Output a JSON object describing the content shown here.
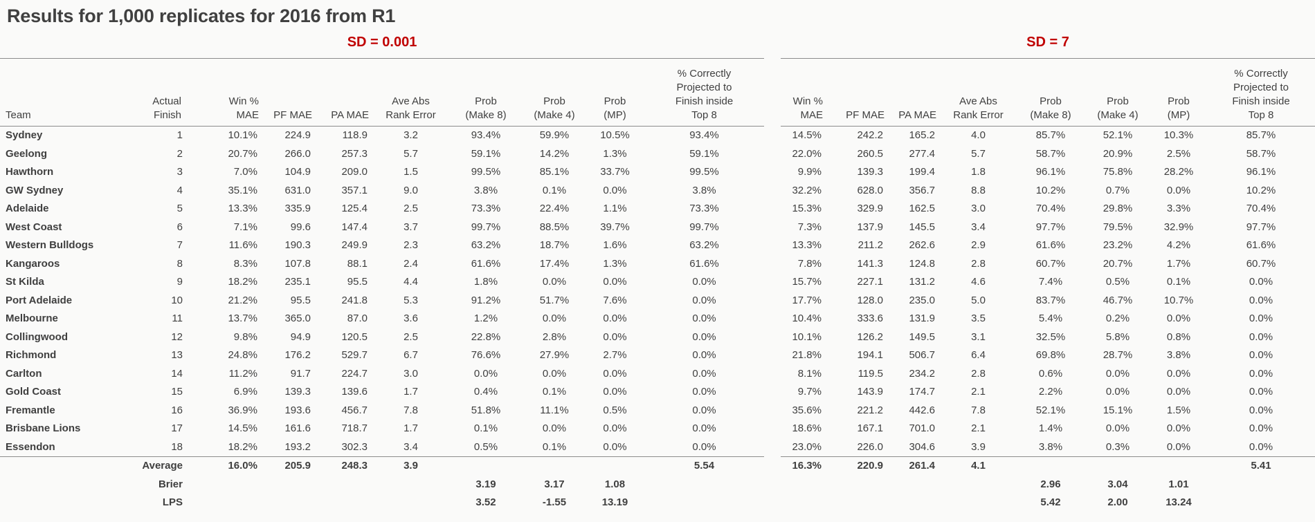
{
  "title": "Results for 1,000 replicates for 2016 from R1",
  "accent_color": "#c00000",
  "sections": [
    {
      "label": "SD = 0.001"
    },
    {
      "label": "SD = 7"
    }
  ],
  "headers": {
    "team": "Team",
    "finish": "Actual\nFinish",
    "win_mae": "Win %\nMAE",
    "pf_mae": "PF MAE",
    "pa_mae": "PA MAE",
    "rank_error": "Ave Abs\nRank Error",
    "prob_make8": "Prob\n(Make 8)",
    "prob_make4": "Prob\n(Make 4)",
    "prob_mp": "Prob\n(MP)",
    "top8": "% Correctly\nProjected to\nFinish inside\nTop 8"
  },
  "rows": [
    {
      "team": "Sydney",
      "finish": "1",
      "sd_001": [
        "10.1%",
        "224.9",
        "118.9",
        "3.2",
        "93.4%",
        "59.9%",
        "10.5%",
        "93.4%"
      ],
      "sd_7": [
        "14.5%",
        "242.2",
        "165.2",
        "4.0",
        "85.7%",
        "52.1%",
        "10.3%",
        "85.7%"
      ]
    },
    {
      "team": "Geelong",
      "finish": "2",
      "sd_001": [
        "20.7%",
        "266.0",
        "257.3",
        "5.7",
        "59.1%",
        "14.2%",
        "1.3%",
        "59.1%"
      ],
      "sd_7": [
        "22.0%",
        "260.5",
        "277.4",
        "5.7",
        "58.7%",
        "20.9%",
        "2.5%",
        "58.7%"
      ]
    },
    {
      "team": "Hawthorn",
      "finish": "3",
      "sd_001": [
        "7.0%",
        "104.9",
        "209.0",
        "1.5",
        "99.5%",
        "85.1%",
        "33.7%",
        "99.5%"
      ],
      "sd_7": [
        "9.9%",
        "139.3",
        "199.4",
        "1.8",
        "96.1%",
        "75.8%",
        "28.2%",
        "96.1%"
      ]
    },
    {
      "team": "GW Sydney",
      "finish": "4",
      "sd_001": [
        "35.1%",
        "631.0",
        "357.1",
        "9.0",
        "3.8%",
        "0.1%",
        "0.0%",
        "3.8%"
      ],
      "sd_7": [
        "32.2%",
        "628.0",
        "356.7",
        "8.8",
        "10.2%",
        "0.7%",
        "0.0%",
        "10.2%"
      ]
    },
    {
      "team": "Adelaide",
      "finish": "5",
      "sd_001": [
        "13.3%",
        "335.9",
        "125.4",
        "2.5",
        "73.3%",
        "22.4%",
        "1.1%",
        "73.3%"
      ],
      "sd_7": [
        "15.3%",
        "329.9",
        "162.5",
        "3.0",
        "70.4%",
        "29.8%",
        "3.3%",
        "70.4%"
      ]
    },
    {
      "team": "West Coast",
      "finish": "6",
      "sd_001": [
        "7.1%",
        "99.6",
        "147.4",
        "3.7",
        "99.7%",
        "88.5%",
        "39.7%",
        "99.7%"
      ],
      "sd_7": [
        "7.3%",
        "137.9",
        "145.5",
        "3.4",
        "97.7%",
        "79.5%",
        "32.9%",
        "97.7%"
      ]
    },
    {
      "team": "Western Bulldogs",
      "finish": "7",
      "sd_001": [
        "11.6%",
        "190.3",
        "249.9",
        "2.3",
        "63.2%",
        "18.7%",
        "1.6%",
        "63.2%"
      ],
      "sd_7": [
        "13.3%",
        "211.2",
        "262.6",
        "2.9",
        "61.6%",
        "23.2%",
        "4.2%",
        "61.6%"
      ]
    },
    {
      "team": "Kangaroos",
      "finish": "8",
      "sd_001": [
        "8.3%",
        "107.8",
        "88.1",
        "2.4",
        "61.6%",
        "17.4%",
        "1.3%",
        "61.6%"
      ],
      "sd_7": [
        "7.8%",
        "141.3",
        "124.8",
        "2.8",
        "60.7%",
        "20.7%",
        "1.7%",
        "60.7%"
      ]
    },
    {
      "team": "St Kilda",
      "finish": "9",
      "sd_001": [
        "18.2%",
        "235.1",
        "95.5",
        "4.4",
        "1.8%",
        "0.0%",
        "0.0%",
        "0.0%"
      ],
      "sd_7": [
        "15.7%",
        "227.1",
        "131.2",
        "4.6",
        "7.4%",
        "0.5%",
        "0.1%",
        "0.0%"
      ]
    },
    {
      "team": "Port Adelaide",
      "finish": "10",
      "sd_001": [
        "21.2%",
        "95.5",
        "241.8",
        "5.3",
        "91.2%",
        "51.7%",
        "7.6%",
        "0.0%"
      ],
      "sd_7": [
        "17.7%",
        "128.0",
        "235.0",
        "5.0",
        "83.7%",
        "46.7%",
        "10.7%",
        "0.0%"
      ]
    },
    {
      "team": "Melbourne",
      "finish": "11",
      "sd_001": [
        "13.7%",
        "365.0",
        "87.0",
        "3.6",
        "1.2%",
        "0.0%",
        "0.0%",
        "0.0%"
      ],
      "sd_7": [
        "10.4%",
        "333.6",
        "131.9",
        "3.5",
        "5.4%",
        "0.2%",
        "0.0%",
        "0.0%"
      ]
    },
    {
      "team": "Collingwood",
      "finish": "12",
      "sd_001": [
        "9.8%",
        "94.9",
        "120.5",
        "2.5",
        "22.8%",
        "2.8%",
        "0.0%",
        "0.0%"
      ],
      "sd_7": [
        "10.1%",
        "126.2",
        "149.5",
        "3.1",
        "32.5%",
        "5.8%",
        "0.8%",
        "0.0%"
      ]
    },
    {
      "team": "Richmond",
      "finish": "13",
      "sd_001": [
        "24.8%",
        "176.2",
        "529.7",
        "6.7",
        "76.6%",
        "27.9%",
        "2.7%",
        "0.0%"
      ],
      "sd_7": [
        "21.8%",
        "194.1",
        "506.7",
        "6.4",
        "69.8%",
        "28.7%",
        "3.8%",
        "0.0%"
      ]
    },
    {
      "team": "Carlton",
      "finish": "14",
      "sd_001": [
        "11.2%",
        "91.7",
        "224.7",
        "3.0",
        "0.0%",
        "0.0%",
        "0.0%",
        "0.0%"
      ],
      "sd_7": [
        "8.1%",
        "119.5",
        "234.2",
        "2.8",
        "0.6%",
        "0.0%",
        "0.0%",
        "0.0%"
      ]
    },
    {
      "team": "Gold Coast",
      "finish": "15",
      "sd_001": [
        "6.9%",
        "139.3",
        "139.6",
        "1.7",
        "0.4%",
        "0.1%",
        "0.0%",
        "0.0%"
      ],
      "sd_7": [
        "9.7%",
        "143.9",
        "174.7",
        "2.1",
        "2.2%",
        "0.0%",
        "0.0%",
        "0.0%"
      ]
    },
    {
      "team": "Fremantle",
      "finish": "16",
      "sd_001": [
        "36.9%",
        "193.6",
        "456.7",
        "7.8",
        "51.8%",
        "11.1%",
        "0.5%",
        "0.0%"
      ],
      "sd_7": [
        "35.6%",
        "221.2",
        "442.6",
        "7.8",
        "52.1%",
        "15.1%",
        "1.5%",
        "0.0%"
      ]
    },
    {
      "team": "Brisbane Lions",
      "finish": "17",
      "sd_001": [
        "14.5%",
        "161.6",
        "718.7",
        "1.7",
        "0.1%",
        "0.0%",
        "0.0%",
        "0.0%"
      ],
      "sd_7": [
        "18.6%",
        "167.1",
        "701.0",
        "2.1",
        "1.4%",
        "0.0%",
        "0.0%",
        "0.0%"
      ]
    },
    {
      "team": "Essendon",
      "finish": "18",
      "sd_001": [
        "18.2%",
        "193.2",
        "302.3",
        "3.4",
        "0.5%",
        "0.1%",
        "0.0%",
        "0.0%"
      ],
      "sd_7": [
        "23.0%",
        "226.0",
        "304.6",
        "3.9",
        "3.8%",
        "0.3%",
        "0.0%",
        "0.0%"
      ]
    }
  ],
  "summary": [
    {
      "label": "Average",
      "sd_001": [
        "16.0%",
        "205.9",
        "248.3",
        "3.9",
        "",
        "",
        "",
        "5.54"
      ],
      "sd_7": [
        "16.3%",
        "220.9",
        "261.4",
        "4.1",
        "",
        "",
        "",
        "5.41"
      ]
    },
    {
      "label": "Brier",
      "sd_001": [
        "",
        "",
        "",
        "",
        "3.19",
        "3.17",
        "1.08",
        ""
      ],
      "sd_7": [
        "",
        "",
        "",
        "",
        "2.96",
        "3.04",
        "1.01",
        ""
      ]
    },
    {
      "label": "LPS",
      "sd_001": [
        "",
        "",
        "",
        "",
        "3.52",
        "-1.55",
        "13.19",
        ""
      ],
      "sd_7": [
        "",
        "",
        "",
        "",
        "5.42",
        "2.00",
        "13.24",
        ""
      ]
    }
  ]
}
